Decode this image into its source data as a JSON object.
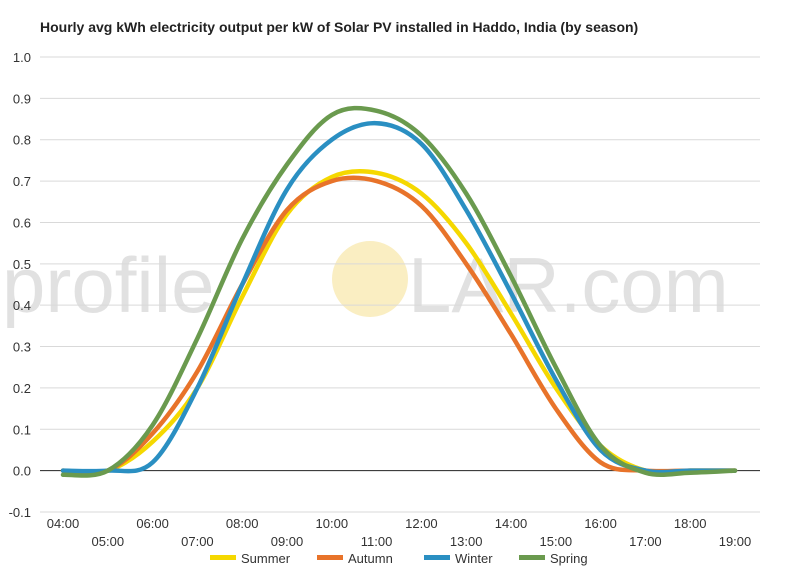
{
  "chart_data": {
    "type": "line",
    "title": "Hourly avg kWh electricity output per kW of Solar PV installed in Haddo, India (by season)",
    "xlabel": "",
    "ylabel": "",
    "x": [
      "04:00",
      "05:00",
      "06:00",
      "07:00",
      "08:00",
      "09:00",
      "10:00",
      "11:00",
      "12:00",
      "13:00",
      "14:00",
      "15:00",
      "16:00",
      "17:00",
      "18:00",
      "19:00"
    ],
    "ylim": [
      -0.1,
      1.0
    ],
    "yticks": [
      "-0.1",
      "0.0",
      "0.1",
      "0.2",
      "0.3",
      "0.4",
      "0.5",
      "0.6",
      "0.7",
      "0.8",
      "0.9",
      "1.0"
    ],
    "grid": true,
    "legend_position": "bottom",
    "series": [
      {
        "name": "Summer",
        "color": "#f5d800",
        "values": [
          0.0,
          0.0,
          0.07,
          0.2,
          0.42,
          0.62,
          0.71,
          0.72,
          0.67,
          0.55,
          0.38,
          0.2,
          0.06,
          0.0,
          0.0,
          0.0
        ]
      },
      {
        "name": "Autumn",
        "color": "#e8732a",
        "values": [
          0.0,
          0.0,
          0.09,
          0.24,
          0.45,
          0.63,
          0.7,
          0.7,
          0.64,
          0.5,
          0.33,
          0.15,
          0.02,
          0.0,
          0.0,
          0.0
        ]
      },
      {
        "name": "Winter",
        "color": "#2a8fc2",
        "values": [
          0.0,
          0.0,
          0.02,
          0.2,
          0.45,
          0.68,
          0.8,
          0.84,
          0.79,
          0.63,
          0.43,
          0.22,
          0.05,
          0.0,
          0.0,
          0.0
        ]
      },
      {
        "name": "Spring",
        "color": "#6a9a4e",
        "values": [
          -0.01,
          0.0,
          0.11,
          0.32,
          0.56,
          0.74,
          0.86,
          0.87,
          0.81,
          0.67,
          0.47,
          0.25,
          0.06,
          -0.005,
          -0.005,
          0.0
        ]
      }
    ]
  },
  "watermark": {
    "left": "profile",
    "right": "LAR.com"
  }
}
